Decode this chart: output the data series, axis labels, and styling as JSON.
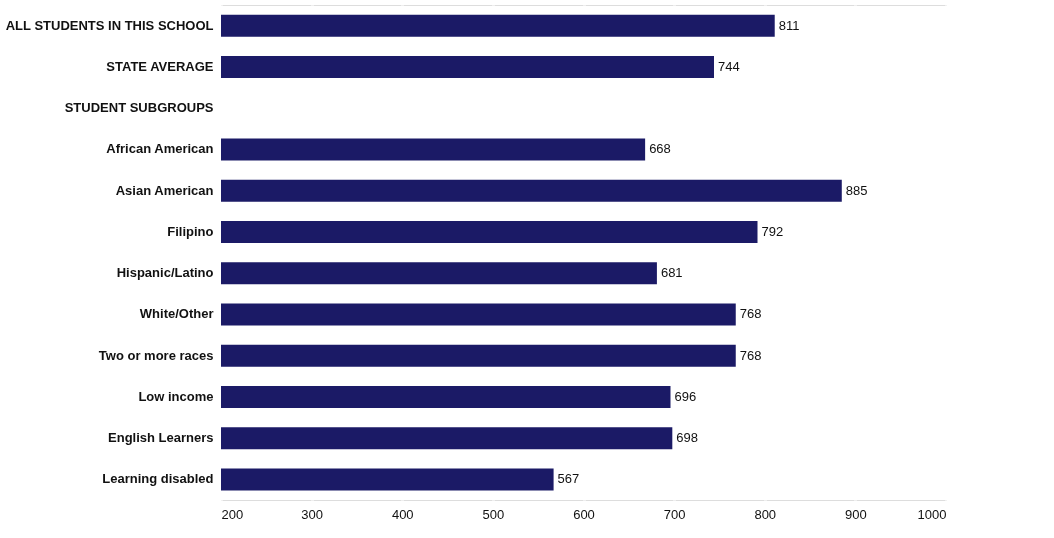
{
  "chart_data": {
    "type": "bar",
    "orientation": "horizontal",
    "categories": [
      "ALL STUDENTS IN THIS SCHOOL",
      "STATE AVERAGE",
      "STUDENT SUBGROUPS",
      "African American",
      "Asian American",
      "Filipino",
      "Hispanic/Latino",
      "White/Other",
      "Two or more races",
      "Low income",
      "English Learners",
      "Learning disabled"
    ],
    "values": [
      811,
      744,
      null,
      668,
      885,
      792,
      681,
      768,
      768,
      696,
      698,
      567
    ],
    "color": "#1b1a66",
    "xlim": [
      200,
      1000
    ],
    "xticks": [
      200,
      300,
      400,
      500,
      600,
      700,
      800,
      900,
      1000
    ],
    "grid": "x",
    "data_labels": true
  }
}
